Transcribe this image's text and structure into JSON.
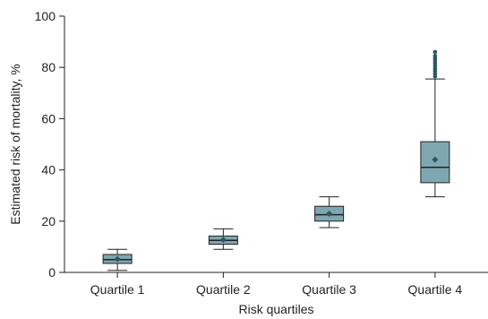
{
  "chart_data": {
    "type": "box",
    "xlabel": "Risk quartiles",
    "ylabel": "Estimated risk of mortality, %",
    "ylim": [
      0,
      100
    ],
    "yticks": [
      0,
      20,
      40,
      60,
      80,
      100
    ],
    "grid": false,
    "box_fill": "#7fa7b2",
    "line_color": "#222222",
    "mean_marker_color": "#2c5766",
    "outlier_color": "#2c5766",
    "categories": [
      "Quartile 1",
      "Quartile 2",
      "Quartile 3",
      "Quartile 4"
    ],
    "boxes": [
      {
        "category": "Quartile 1",
        "whisker_low": 0.8,
        "q1": 3.5,
        "median": 5,
        "q3": 7,
        "whisker_high": 9,
        "mean": 5.2,
        "outliers": []
      },
      {
        "category": "Quartile 2",
        "whisker_low": 9,
        "q1": 11,
        "median": 12.5,
        "q3": 14.2,
        "whisker_high": 17,
        "mean": 12.7,
        "outliers": []
      },
      {
        "category": "Quartile 3",
        "whisker_low": 17.5,
        "q1": 20,
        "median": 22.5,
        "q3": 25.8,
        "whisker_high": 29.5,
        "mean": 22.9,
        "outliers": []
      },
      {
        "category": "Quartile 4",
        "whisker_low": 29.5,
        "q1": 35,
        "median": 41,
        "q3": 51,
        "whisker_high": 75.5,
        "mean": 44,
        "outliers": [
          76.5,
          77.5,
          78.5,
          79.5,
          80.5,
          81.5,
          82.5,
          83.5,
          84.5,
          86
        ]
      }
    ]
  }
}
